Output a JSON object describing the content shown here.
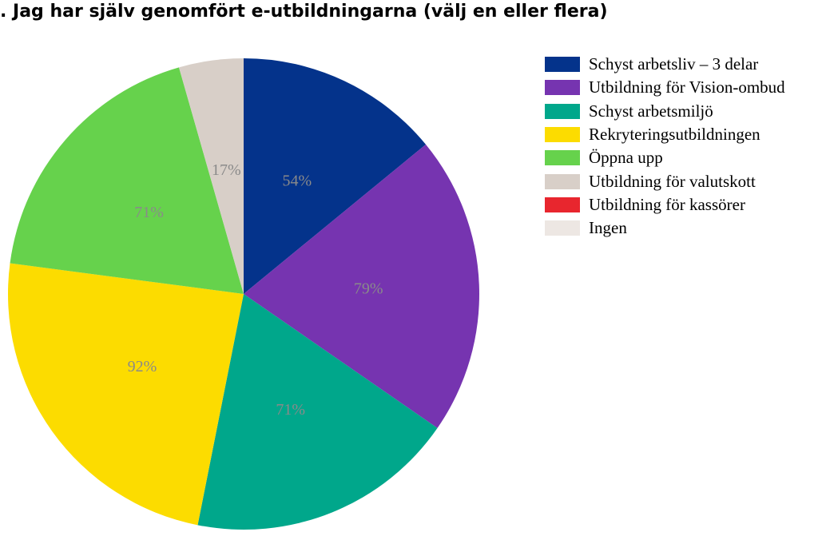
{
  "chart_data": {
    "type": "pie",
    "title": ". Jag har själv genomfört e-utbildningarna (välj en eller flera)",
    "categories": [
      "Schyst arbetsliv – 3 delar",
      "Utbildning för Vision-ombud",
      "Schyst arbetsmiljö",
      "Rekryteringsutbildningen",
      "Öppna upp",
      "Utbildning för valutskott",
      "Utbildning för kassörer",
      "Ingen"
    ],
    "values": [
      54,
      79,
      71,
      92,
      71,
      17,
      0,
      0
    ],
    "data_labels": [
      "54%",
      "79%",
      "71%",
      "92%",
      "71%",
      "17%",
      "",
      ""
    ],
    "colors": [
      "#04338b",
      "#7634b0",
      "#00a78b",
      "#fcdc00",
      "#66d24c",
      "#d8cfc8",
      "#e8262e",
      "#ede7e3"
    ],
    "label_color": "#8a8a8a",
    "legend_position": "right"
  }
}
